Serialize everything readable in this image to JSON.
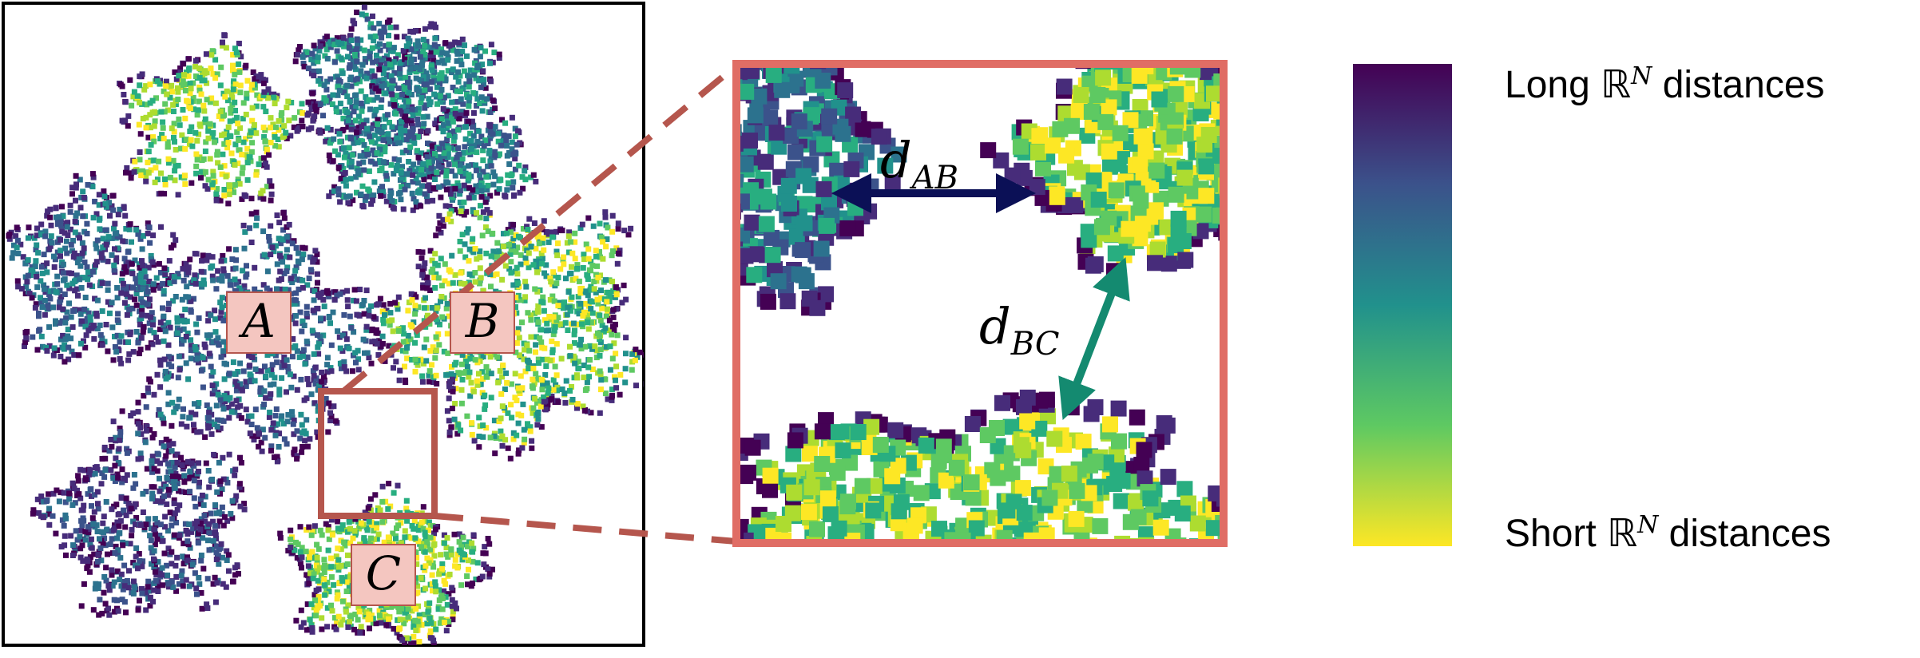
{
  "figure": {
    "labels": {
      "cluster_a": "A",
      "cluster_b": "B",
      "cluster_c": "C"
    },
    "zoom": {
      "d_ab": {
        "base": "d",
        "sub": "AB"
      },
      "d_bc": {
        "base": "d",
        "sub": "BC"
      }
    },
    "colorbar": {
      "top_label": {
        "pre": "Long ",
        "symbol": "ℝ",
        "sup": "N",
        "post": " distances"
      },
      "bottom_label": {
        "pre": "Short ",
        "symbol": "ℝ",
        "sup": "N",
        "post": " distances"
      },
      "colormap": "viridis-reversed",
      "colors": [
        "#440154",
        "#3b528b",
        "#21918c",
        "#5ec962",
        "#fde725"
      ]
    },
    "colors": {
      "zoom_frame": "#e06d65",
      "zoom_guide": "#b5564d",
      "label_box_fill": "#f4c6c0",
      "label_box_edge": "#b5564d",
      "arrow_ab": "#0b1056",
      "arrow_bc": "#148a70"
    }
  }
}
